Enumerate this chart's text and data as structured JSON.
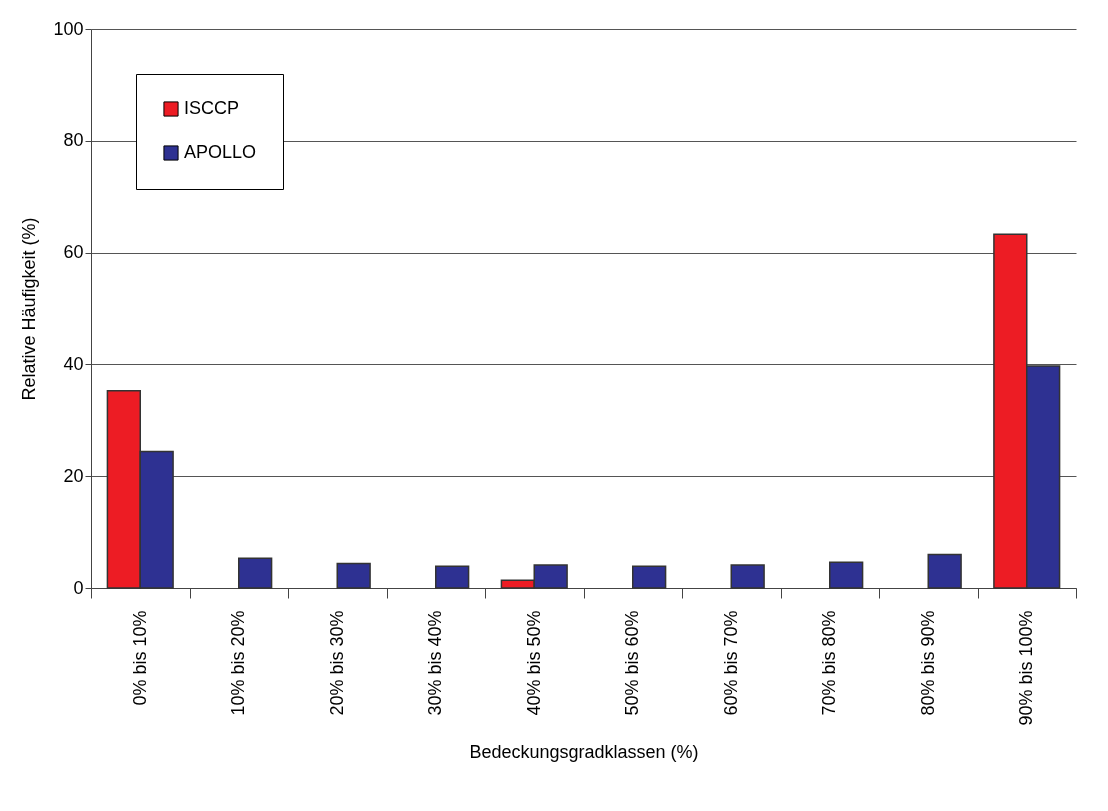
{
  "chart_data": {
    "type": "bar",
    "xlabel": "Bedeckungsgradklassen (%)",
    "ylabel": "Relative Häufigkeit (%)",
    "categories": [
      "0% bis 10%",
      "10% bis 20%",
      "20% bis 30%",
      "30% bis 40%",
      "40% bis 50%",
      "50% bis 60%",
      "60% bis 70%",
      "70% bis 80%",
      "80% bis 90%",
      "90% bis 100%"
    ],
    "series": [
      {
        "name": "ISCCP",
        "color": "#ed1c24",
        "values": [
          35.3,
          null,
          null,
          null,
          1.4,
          null,
          null,
          null,
          null,
          63.3
        ]
      },
      {
        "name": "APOLLO",
        "color": "#2e3192",
        "values": [
          24.4,
          5.3,
          4.4,
          3.9,
          4.1,
          3.9,
          4.1,
          4.6,
          6.0,
          39.7
        ]
      }
    ],
    "ylim": [
      0,
      100
    ],
    "yticks": [
      0,
      20,
      40,
      60,
      80,
      100
    ],
    "grid": "y",
    "legend": "top left"
  }
}
